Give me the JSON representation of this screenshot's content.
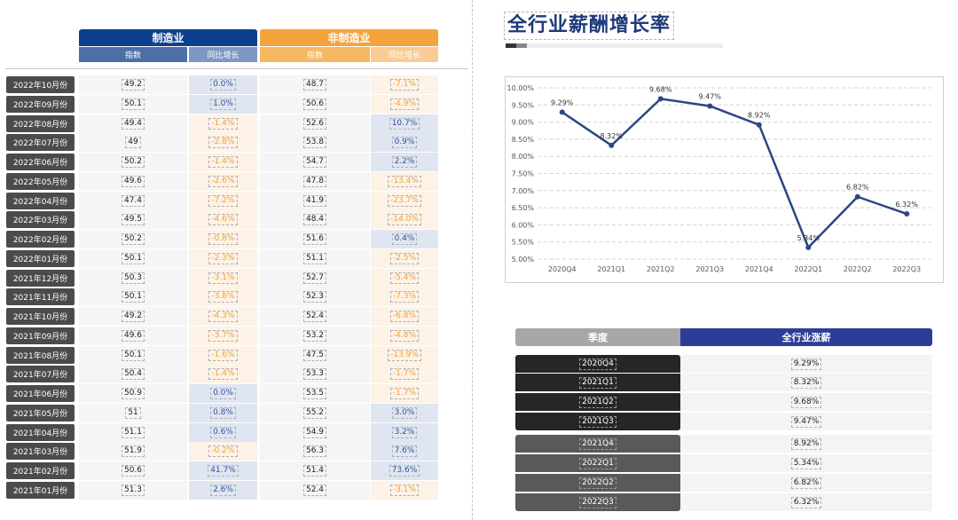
{
  "left_table": {
    "group1": {
      "title": "制造业",
      "col_index": "指数",
      "col_yoy": "同比增长"
    },
    "group2": {
      "title": "非制造业",
      "col_index": "指数",
      "col_yoy": "同比增长"
    },
    "rows": [
      {
        "month": "2022年10月份",
        "idx1": "49.2",
        "yoy1": "0.0%",
        "idx2": "48.7",
        "yoy2": "-7.1%"
      },
      {
        "month": "2022年09月份",
        "idx1": "50.1",
        "yoy1": "1.0%",
        "idx2": "50.6",
        "yoy2": "-4.9%"
      },
      {
        "month": "2022年08月份",
        "idx1": "49.4",
        "yoy1": "-1.4%",
        "idx2": "52.6",
        "yoy2": "10.7%"
      },
      {
        "month": "2022年07月份",
        "idx1": "49",
        "yoy1": "-2.8%",
        "idx2": "53.8",
        "yoy2": "0.9%"
      },
      {
        "month": "2022年06月份",
        "idx1": "50.2",
        "yoy1": "-1.4%",
        "idx2": "54.7",
        "yoy2": "2.2%"
      },
      {
        "month": "2022年05月份",
        "idx1": "49.6",
        "yoy1": "-2.6%",
        "idx2": "47.8",
        "yoy2": "-13.4%"
      },
      {
        "month": "2022年04月份",
        "idx1": "47.4",
        "yoy1": "-7.2%",
        "idx2": "41.9",
        "yoy2": "-23.7%"
      },
      {
        "month": "2022年03月份",
        "idx1": "49.5",
        "yoy1": "-4.6%",
        "idx2": "48.4",
        "yoy2": "-14.0%"
      },
      {
        "month": "2022年02月份",
        "idx1": "50.2",
        "yoy1": "-0.8%",
        "idx2": "51.6",
        "yoy2": "0.4%"
      },
      {
        "month": "2022年01月份",
        "idx1": "50.1",
        "yoy1": "-2.3%",
        "idx2": "51.1",
        "yoy2": "-2.5%"
      },
      {
        "month": "2021年12月份",
        "idx1": "50.3",
        "yoy1": "-3.1%",
        "idx2": "52.7",
        "yoy2": "-5.4%"
      },
      {
        "month": "2021年11月份",
        "idx1": "50.1",
        "yoy1": "-3.8%",
        "idx2": "52.3",
        "yoy2": "-7.3%"
      },
      {
        "month": "2021年10月份",
        "idx1": "49.2",
        "yoy1": "-4.3%",
        "idx2": "52.4",
        "yoy2": "-6.8%"
      },
      {
        "month": "2021年09月份",
        "idx1": "49.6",
        "yoy1": "-3.7%",
        "idx2": "53.2",
        "yoy2": "-4.8%"
      },
      {
        "month": "2021年08月份",
        "idx1": "50.1",
        "yoy1": "-1.6%",
        "idx2": "47.5",
        "yoy2": "-13.9%"
      },
      {
        "month": "2021年07月份",
        "idx1": "50.4",
        "yoy1": "-1.4%",
        "idx2": "53.3",
        "yoy2": "-1.7%"
      },
      {
        "month": "2021年06月份",
        "idx1": "50.9",
        "yoy1": "0.0%",
        "idx2": "53.5",
        "yoy2": "-1.7%"
      },
      {
        "month": "2021年05月份",
        "idx1": "51",
        "yoy1": "0.8%",
        "idx2": "55.2",
        "yoy2": "3.0%"
      },
      {
        "month": "2021年04月份",
        "idx1": "51.1",
        "yoy1": "0.6%",
        "idx2": "54.9",
        "yoy2": "3.2%"
      },
      {
        "month": "2021年03月份",
        "idx1": "51.9",
        "yoy1": "-0.2%",
        "idx2": "56.3",
        "yoy2": "7.6%"
      },
      {
        "month": "2021年02月份",
        "idx1": "50.6",
        "yoy1": "41.7%",
        "idx2": "51.4",
        "yoy2": "73.6%"
      },
      {
        "month": "2021年01月份",
        "idx1": "51.3",
        "yoy1": "2.6%",
        "idx2": "52.4",
        "yoy2": "-3.1%"
      }
    ]
  },
  "right_title": "全行业薪酬增长率",
  "chart_data": {
    "type": "line",
    "categories": [
      "2020Q4",
      "2021Q1",
      "2021Q2",
      "2021Q3",
      "2021Q4",
      "2022Q1",
      "2022Q2",
      "2022Q3"
    ],
    "values": [
      9.29,
      8.32,
      9.68,
      9.47,
      8.92,
      5.34,
      6.82,
      6.32
    ],
    "value_labels": [
      "9.29%",
      "8.32%",
      "9.68%",
      "9.47%",
      "8.92%",
      "5.34%",
      "6.82%",
      "6.32%"
    ],
    "y_ticks": [
      "5.00%",
      "5.50%",
      "6.00%",
      "6.50%",
      "7.00%",
      "7.50%",
      "8.00%",
      "8.50%",
      "9.00%",
      "9.50%",
      "10.00%"
    ],
    "ylim": [
      5.0,
      10.0
    ],
    "grid": true,
    "line_color": "#2c4684"
  },
  "bottom_table": {
    "col_quarter": "季度",
    "col_value": "全行业涨薪",
    "rows": [
      {
        "q": "2020Q4",
        "v": "9.29%"
      },
      {
        "q": "2021Q1",
        "v": "8.32%"
      },
      {
        "q": "2021Q2",
        "v": "9.68%"
      },
      {
        "q": "2021Q3",
        "v": "9.47%"
      },
      {
        "q": "2021Q4",
        "v": "8.92%"
      },
      {
        "q": "2022Q1",
        "v": "5.34%"
      },
      {
        "q": "2022Q2",
        "v": "6.82%"
      },
      {
        "q": "2022Q3",
        "v": "6.32%"
      }
    ]
  },
  "colors": {
    "manufacturing_header": "#0e3f8f",
    "manufacturing_sub": "#4c6fa8",
    "nonmanufacturing_header": "#f4a33d",
    "nonmanufacturing_sub": "#f7c07c",
    "positive_text": "#2f5597",
    "negative_text": "#f0a13a",
    "bottom_header_value": "#2c3d97"
  }
}
